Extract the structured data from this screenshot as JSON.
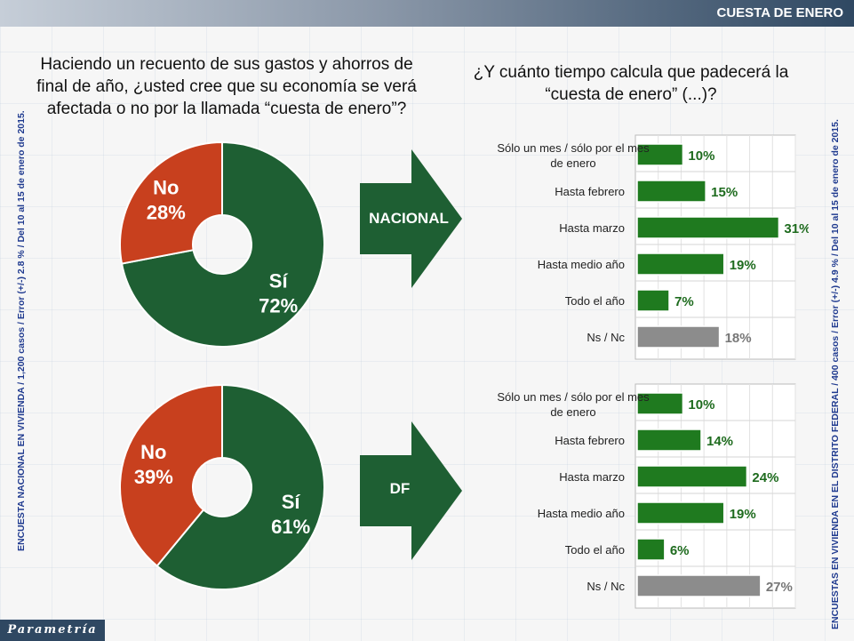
{
  "header": {
    "title": "CUESTA DE ENERO"
  },
  "question_left": "Haciendo un recuento de sus gastos y ahorros de final de año, ¿usted cree que su economía se verá afectada o no por la llamada “cuesta de enero”?",
  "question_right": "¿Y cuánto tiempo calcula que padecerá la “cuesta de enero” (...)?",
  "side_note_left": "ENCUESTA NACIONAL EN VIVIENDA / 1,200 casos / Error (+/-) 2.8 % / Del 10 al 15 de enero de 2015.",
  "side_note_right": "ENCUESTAS EN VIVIENDA EN EL DISTRITO FEDERAL / 400 casos / Error (+/-) 4.9 % / Del 10 al 15 de enero de 2015.",
  "arrows": [
    "NACIONAL",
    "DF"
  ],
  "logo": "Parametría",
  "colors": {
    "green": "#1e5f33",
    "red": "#c8401e",
    "gray": "#8c8c8c",
    "bar_green": "#1f7a1f"
  },
  "chart_data": [
    {
      "type": "pie",
      "title": "",
      "slices": [
        {
          "label": "Sí",
          "value": 72
        },
        {
          "label": "No",
          "value": 28
        }
      ],
      "value_labels": [
        "72%",
        "28%"
      ]
    },
    {
      "type": "pie",
      "title": "",
      "slices": [
        {
          "label": "Sí",
          "value": 61
        },
        {
          "label": "No",
          "value": 39
        }
      ],
      "value_labels": [
        "61%",
        "39%"
      ]
    },
    {
      "type": "bar",
      "orientation": "horizontal",
      "categories": [
        "Sólo un mes / sólo por el mes de enero",
        "Hasta febrero",
        "Hasta marzo",
        "Hasta medio año",
        "Todo el año",
        "Ns / Nc"
      ],
      "values": [
        10,
        15,
        31,
        19,
        7,
        18
      ],
      "value_labels": [
        "10%",
        "15%",
        "31%",
        "19%",
        "7%",
        "18%"
      ],
      "xlim": [
        0,
        35
      ]
    },
    {
      "type": "bar",
      "orientation": "horizontal",
      "categories": [
        "Sólo un mes / sólo por el mes de enero",
        "Hasta febrero",
        "Hasta marzo",
        "Hasta medio año",
        "Todo el año",
        "Ns / Nc"
      ],
      "values": [
        10,
        14,
        24,
        19,
        6,
        27
      ],
      "value_labels": [
        "10%",
        "14%",
        "24%",
        "19%",
        "6%",
        "27%"
      ],
      "xlim": [
        0,
        35
      ]
    }
  ]
}
